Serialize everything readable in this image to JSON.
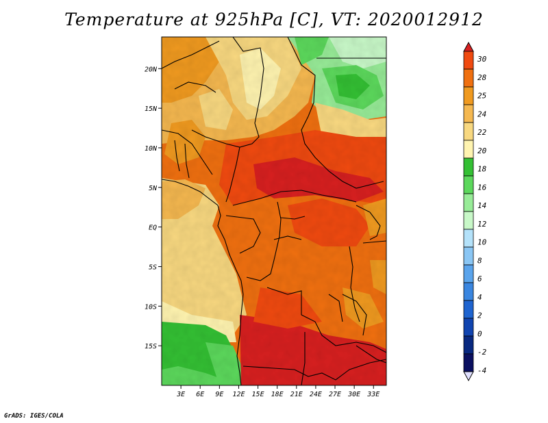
{
  "title": "Temperature at 925hPa [C], VT: 2020012912",
  "credit": "GrADS: IGES/COLA",
  "map": {
    "lon_labels": [
      "3E",
      "6E",
      "9E",
      "12E",
      "15E",
      "18E",
      "21E",
      "24E",
      "27E",
      "30E",
      "33E"
    ],
    "lat_labels": [
      "20N",
      "15N",
      "10N",
      "5N",
      "EQ",
      "5S",
      "10S",
      "15S"
    ],
    "lon_range": [
      0,
      35
    ],
    "lat_range": [
      -20,
      24
    ]
  },
  "colorbar": {
    "labels": [
      "30",
      "28",
      "25",
      "24",
      "22",
      "20",
      "18",
      "16",
      "14",
      "12",
      "10",
      "8",
      "6",
      "4",
      "2",
      "0",
      "-2",
      "-4"
    ],
    "colors": [
      "#d82020",
      "#f04a10",
      "#f07010",
      "#f09a20",
      "#f5b850",
      "#f8d880",
      "#fff4b0",
      "#34c034",
      "#5cd85c",
      "#98ec98",
      "#c8f8c8",
      "#b4e2fa",
      "#8ac6f4",
      "#5aa4ec",
      "#3a86e0",
      "#1e64d0",
      "#1044b0",
      "#082880",
      "#0a1060",
      "#e0e0ff"
    ]
  }
}
